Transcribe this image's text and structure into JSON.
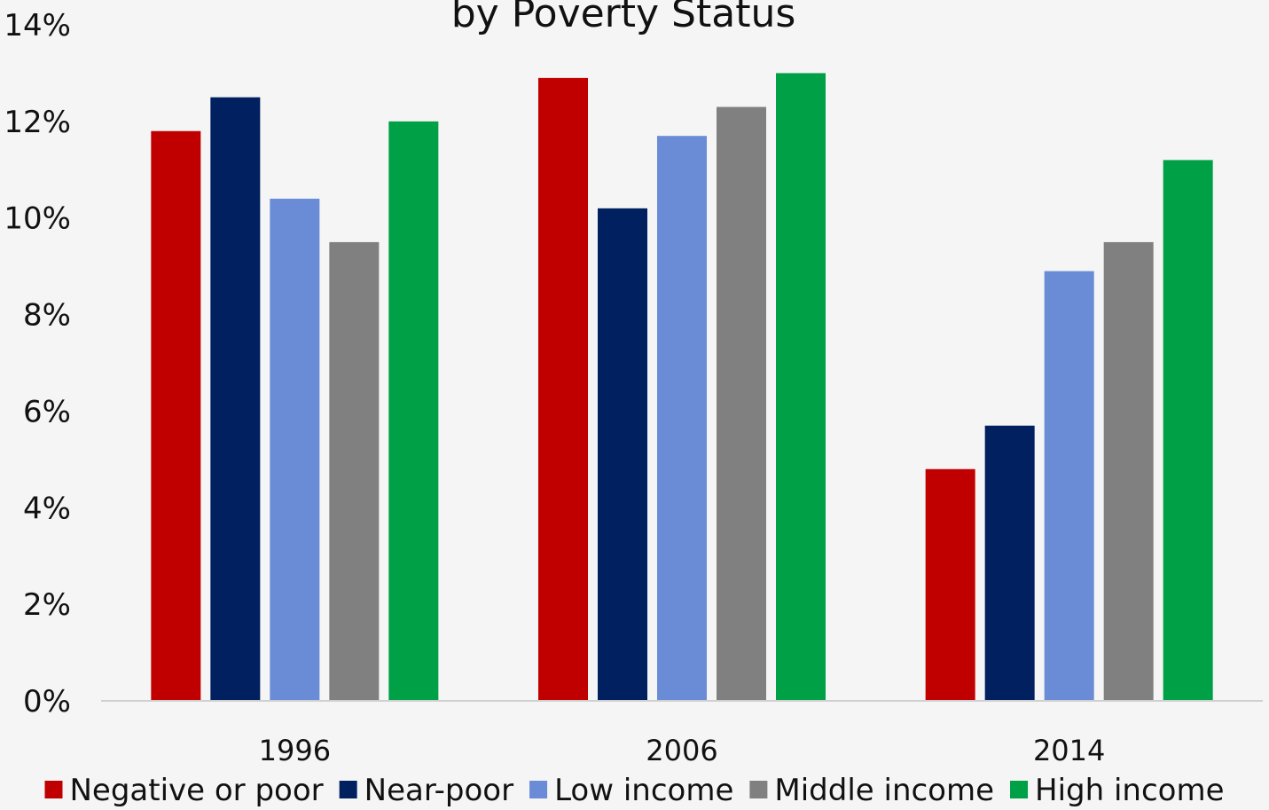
{
  "chart_data": {
    "type": "bar",
    "title": "by Poverty Status",
    "xlabel": "",
    "ylabel": "",
    "ylim": [
      0,
      14
    ],
    "yticks": [
      "0%",
      "2%",
      "4%",
      "6%",
      "8%",
      "10%",
      "12%",
      "14%"
    ],
    "ytick_values": [
      0,
      2,
      4,
      6,
      8,
      10,
      12,
      14
    ],
    "categories": [
      "1996",
      "2006",
      "2014"
    ],
    "grid": false,
    "legend_position": "bottom",
    "series": [
      {
        "name": "Negative or poor",
        "color": "#c00000",
        "values": [
          11.8,
          12.9,
          4.8
        ]
      },
      {
        "name": "Near-poor",
        "color": "#002060",
        "values": [
          12.5,
          10.2,
          5.7
        ]
      },
      {
        "name": "Low income",
        "color": "#6a8cd6",
        "values": [
          10.4,
          11.7,
          8.9
        ]
      },
      {
        "name": "Middle income",
        "color": "#808080",
        "values": [
          9.5,
          12.3,
          9.5
        ]
      },
      {
        "name": "High income",
        "color": "#00a046",
        "values": [
          12.0,
          13.0,
          11.2
        ]
      }
    ]
  }
}
